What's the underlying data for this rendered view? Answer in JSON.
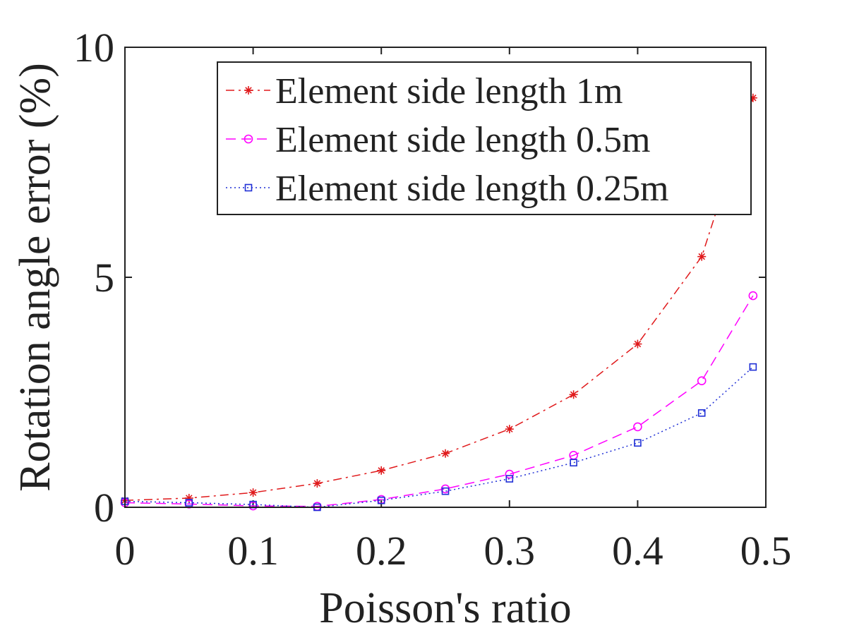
{
  "chart_data": {
    "type": "line",
    "xlabel": "Poisson's ratio",
    "ylabel": "Rotation angle error (%)",
    "xlim": [
      0,
      0.5
    ],
    "ylim": [
      0,
      10
    ],
    "xticks": [
      "0",
      "0.1",
      "0.2",
      "0.3",
      "0.4",
      "0.5"
    ],
    "yticks": [
      "0",
      "5",
      "10"
    ],
    "grid": false,
    "legend_position": "top-right",
    "x": [
      0,
      0.05,
      0.1,
      0.15,
      0.2,
      0.25,
      0.3,
      0.35,
      0.4,
      0.45,
      0.49
    ],
    "series": [
      {
        "name": "Element side length 1m",
        "color": "#e0191b",
        "marker": "asterisk",
        "line_style": "dash-dot",
        "values": [
          0.15,
          0.2,
          0.32,
          0.52,
          0.8,
          1.17,
          1.7,
          2.45,
          3.55,
          5.45,
          8.9
        ]
      },
      {
        "name": "Element side length 0.5m",
        "color": "#ff00ff",
        "marker": "circle",
        "line_style": "dashed",
        "values": [
          0.1,
          0.07,
          0.03,
          0.02,
          0.17,
          0.4,
          0.72,
          1.13,
          1.75,
          2.75,
          4.6
        ]
      },
      {
        "name": "Element side length 0.25m",
        "color": "#1f2fd6",
        "marker": "square",
        "line_style": "dotted",
        "values": [
          0.13,
          0.1,
          0.06,
          0.0,
          0.15,
          0.35,
          0.62,
          0.97,
          1.4,
          2.05,
          3.05
        ]
      }
    ]
  }
}
